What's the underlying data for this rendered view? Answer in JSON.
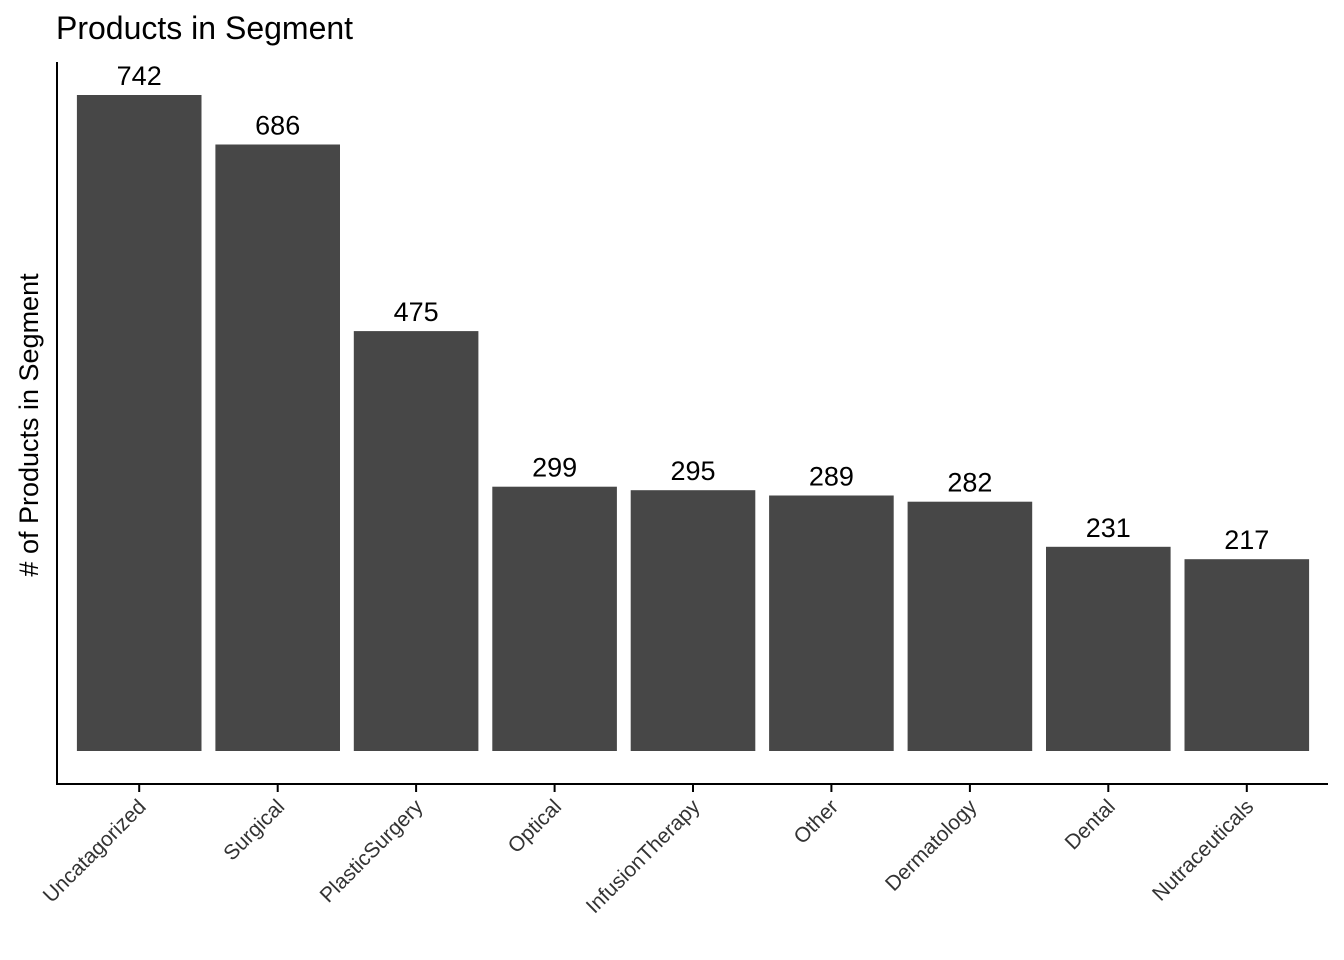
{
  "chart_data": {
    "type": "bar",
    "title": "Products in Segment",
    "xlabel": "",
    "ylabel": "# of Products in Segment",
    "categories": [
      "Uncatagorized",
      "Surgical",
      "PlasticSurgery",
      "Optical",
      "InfusionTherapy",
      "Other",
      "Dermatology",
      "Dental",
      "Nutraceuticals"
    ],
    "values": [
      742,
      686,
      475,
      299,
      295,
      289,
      282,
      231,
      217
    ],
    "ylim": [
      0,
      742
    ],
    "grid": false,
    "y_ticks_shown": false,
    "bar_color": "#474747",
    "data_labels": true
  }
}
